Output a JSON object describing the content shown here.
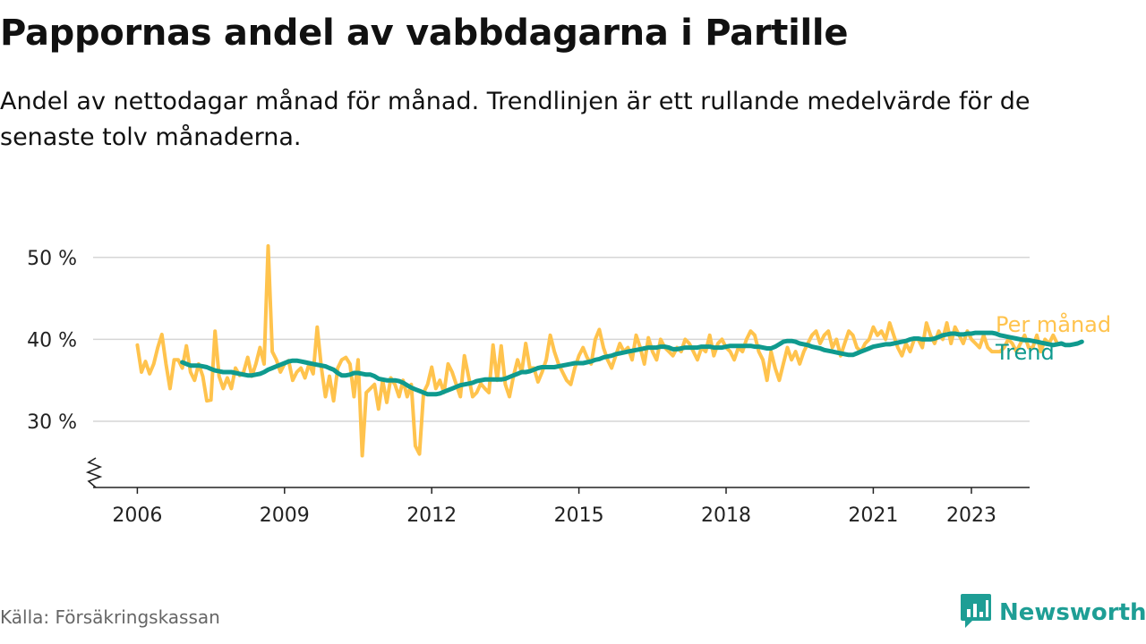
{
  "title": "Pappornas andel av vabbdagarna i Partille",
  "subtitle": "Andel av nettodagar månad för månad. Trendlinjen är ett rullande medelvärde för de senaste tolv månaderna.",
  "source": "Källa: Försäkringskassan",
  "brand": {
    "name": "Newsworthy",
    "logo_icon": "bar-chart-speech-icon",
    "color": "#1e9e95"
  },
  "chart_data": {
    "type": "line",
    "title": "Pappornas andel av vabbdagarna i Partille",
    "ylabel": "",
    "xlabel": "",
    "ylim": [
      22,
      52
    ],
    "xlim": [
      2005.0,
      2024.2
    ],
    "y_axis_break": true,
    "grid": "horizontal",
    "y_ticks": [
      30,
      40,
      50
    ],
    "y_tick_labels": [
      "30 %",
      "40 %",
      "50 %"
    ],
    "x_ticks": [
      2006,
      2009,
      2012,
      2015,
      2018,
      2021,
      2023
    ],
    "x_tick_labels": [
      "2006",
      "2009",
      "2012",
      "2015",
      "2018",
      "2021",
      "2023"
    ],
    "legend_placement": "inline-right",
    "series": [
      {
        "name": "Per månad",
        "color": "#ffc34d",
        "x_start": 2006.0,
        "step": 0.0833333,
        "values": [
          39.3,
          36.0,
          37.3,
          35.8,
          37.0,
          39.0,
          40.6,
          37.0,
          34.0,
          37.5,
          37.5,
          36.5,
          39.2,
          36.0,
          35.0,
          37.0,
          35.5,
          32.5,
          32.6,
          41.0,
          35.5,
          34.0,
          35.3,
          34.0,
          36.5,
          35.6,
          36.0,
          37.8,
          35.5,
          37.0,
          39.0,
          37.0,
          51.4,
          38.5,
          37.5,
          36.0,
          37.0,
          37.4,
          35.0,
          36.0,
          36.5,
          35.3,
          37.0,
          35.8,
          41.5,
          36.6,
          33.0,
          35.5,
          32.5,
          36.5,
          37.5,
          37.8,
          37.0,
          33.0,
          37.5,
          25.8,
          33.5,
          34.0,
          34.5,
          31.5,
          35.0,
          32.3,
          35.3,
          34.5,
          33.0,
          35.0,
          33.0,
          34.5,
          27.0,
          26.0,
          33.5,
          34.5,
          36.6,
          34.0,
          35.0,
          33.5,
          37.0,
          36.0,
          34.5,
          33.0,
          38.0,
          35.5,
          33.0,
          33.5,
          34.6,
          34.0,
          33.5,
          39.3,
          35.0,
          39.2,
          34.5,
          33.0,
          35.5,
          37.5,
          36.0,
          39.5,
          36.5,
          36.5,
          34.8,
          36.0,
          37.5,
          40.5,
          38.5,
          37.0,
          36.0,
          35.0,
          34.5,
          36.5,
          38.0,
          39.0,
          37.8,
          37.0,
          40.0,
          41.2,
          39.0,
          37.5,
          36.5,
          38.0,
          39.5,
          38.5,
          39.0,
          37.5,
          40.5,
          39.0,
          37.0,
          40.2,
          38.5,
          37.5,
          40.0,
          39.0,
          38.5,
          38.0,
          39.0,
          38.5,
          40.0,
          39.5,
          38.5,
          37.5,
          39.0,
          38.5,
          40.5,
          38.0,
          39.5,
          40.0,
          39.0,
          38.5,
          37.5,
          39.0,
          38.5,
          40.0,
          41.0,
          40.5,
          38.5,
          37.5,
          35.0,
          38.5,
          36.5,
          35.0,
          37.0,
          39.0,
          37.5,
          38.5,
          37.0,
          38.5,
          39.5,
          40.5,
          41.0,
          39.5,
          40.5,
          41.0,
          39.0,
          40.0,
          38.0,
          39.5,
          41.0,
          40.5,
          39.0,
          38.5,
          39.5,
          40.0,
          41.5,
          40.5,
          41.0,
          40.0,
          42.0,
          40.5,
          39.0,
          38.0,
          39.5,
          38.5,
          40.0,
          40.0,
          39.0,
          42.0,
          40.5,
          39.5,
          41.0,
          40.0,
          42.0,
          39.5,
          41.5,
          40.5,
          39.5,
          41.0,
          40.0,
          39.5,
          39.0,
          40.5,
          39.0,
          38.5,
          38.5,
          38.5,
          39.0,
          40.0,
          39.5,
          38.5,
          39.5,
          40.5,
          39.0,
          39.0,
          40.5,
          38.5,
          40.0,
          39.5,
          40.5,
          39.5
        ]
      },
      {
        "name": "Trend",
        "color": "#0f9a8e",
        "x_start": 2006.9167,
        "step": 0.0833333,
        "values": [
          37.2,
          37.0,
          36.8,
          36.8,
          36.8,
          36.7,
          36.6,
          36.4,
          36.2,
          36.1,
          36.0,
          36.0,
          36.0,
          35.9,
          35.8,
          35.7,
          35.6,
          35.6,
          35.7,
          35.8,
          36.0,
          36.3,
          36.5,
          36.7,
          36.9,
          37.1,
          37.3,
          37.4,
          37.4,
          37.3,
          37.2,
          37.1,
          37.0,
          36.9,
          36.8,
          36.7,
          36.5,
          36.3,
          35.9,
          35.6,
          35.6,
          35.7,
          35.9,
          35.9,
          35.8,
          35.7,
          35.7,
          35.5,
          35.2,
          35.1,
          35.0,
          35.0,
          35.0,
          34.9,
          34.7,
          34.4,
          34.1,
          33.9,
          33.7,
          33.5,
          33.3,
          33.3,
          33.3,
          33.4,
          33.6,
          33.8,
          34.0,
          34.2,
          34.4,
          34.5,
          34.6,
          34.7,
          34.9,
          35.0,
          35.1,
          35.1,
          35.1,
          35.1,
          35.1,
          35.2,
          35.4,
          35.6,
          35.8,
          36.0,
          36.0,
          36.1,
          36.3,
          36.5,
          36.6,
          36.6,
          36.6,
          36.6,
          36.7,
          36.8,
          36.9,
          37.0,
          37.1,
          37.1,
          37.1,
          37.2,
          37.3,
          37.5,
          37.6,
          37.8,
          37.9,
          38.0,
          38.2,
          38.3,
          38.4,
          38.5,
          38.6,
          38.7,
          38.8,
          38.9,
          39.0,
          39.0,
          39.0,
          39.1,
          39.1,
          39.0,
          38.8,
          38.8,
          38.9,
          39.0,
          39.0,
          39.0,
          39.0,
          39.1,
          39.1,
          39.1,
          39.0,
          39.0,
          39.0,
          39.1,
          39.2,
          39.2,
          39.2,
          39.2,
          39.2,
          39.2,
          39.1,
          39.1,
          39.0,
          38.9,
          38.9,
          39.1,
          39.4,
          39.7,
          39.8,
          39.8,
          39.7,
          39.5,
          39.4,
          39.3,
          39.1,
          39.0,
          38.9,
          38.7,
          38.6,
          38.5,
          38.4,
          38.3,
          38.2,
          38.1,
          38.1,
          38.3,
          38.5,
          38.7,
          38.9,
          39.1,
          39.2,
          39.3,
          39.4,
          39.4,
          39.5,
          39.6,
          39.7,
          39.8,
          40.0,
          40.1,
          40.1,
          40.0,
          40.0,
          40.0,
          40.1,
          40.3,
          40.5,
          40.6,
          40.7,
          40.7,
          40.6,
          40.6,
          40.7,
          40.7,
          40.8,
          40.8,
          40.8,
          40.8,
          40.8,
          40.7,
          40.5,
          40.4,
          40.3,
          40.2,
          40.1,
          40.0,
          39.9,
          39.9,
          39.8,
          39.7,
          39.6,
          39.5,
          39.4,
          39.3,
          39.4,
          39.5,
          39.3,
          39.3,
          39.4,
          39.5,
          39.7
        ]
      }
    ]
  }
}
